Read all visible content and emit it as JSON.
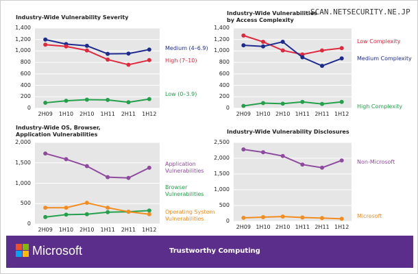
{
  "watermark": "SCAN.NETSECURITY.NE.JP",
  "footer": {
    "brand": "Microsoft",
    "caption": "Trustworthy Computing"
  },
  "chart_data": [
    {
      "type": "line",
      "title": [
        "Industry-Wide Vulnerability Severity"
      ],
      "categories": [
        "2H09",
        "1H10",
        "2H10",
        "1H11",
        "2H11",
        "1H12"
      ],
      "ylim": [
        0,
        1400
      ],
      "yticks": [
        0,
        200,
        400,
        600,
        800,
        {
          "value": 1000,
          "label": "1,000"
        },
        {
          "value": 1200,
          "label": "1,200"
        },
        {
          "value": 1400,
          "label": "1,400"
        }
      ],
      "grid": true,
      "series": [
        {
          "name": "Medium (4–6.9)",
          "color": "#1d2b8f",
          "values": [
            1200,
            1120,
            1090,
            950,
            955,
            1025
          ]
        },
        {
          "name": "High (7–10)",
          "color": "#e0283c",
          "values": [
            1110,
            1080,
            1010,
            850,
            760,
            840
          ]
        },
        {
          "name": "Low (0–3.9)",
          "color": "#22a04a",
          "values": [
            95,
            130,
            150,
            145,
            105,
            160
          ]
        }
      ]
    },
    {
      "type": "line",
      "title": [
        "Industry-Wide Vulnerabilities",
        "by Access Complexity"
      ],
      "categories": [
        "2H09",
        "1H10",
        "2H10",
        "1H11",
        "2H11",
        "1H12"
      ],
      "ylim": [
        0,
        1400
      ],
      "yticks": [
        0,
        200,
        400,
        600,
        800,
        {
          "value": 1000,
          "label": "1,000"
        },
        {
          "value": 1200,
          "label": "1,200"
        },
        {
          "value": 1400,
          "label": "1,400"
        }
      ],
      "grid": true,
      "series": [
        {
          "name": "Low Complexity",
          "color": "#e0283c",
          "values": [
            1270,
            1160,
            1010,
            940,
            1010,
            1050
          ]
        },
        {
          "name": "Medium Complexity",
          "color": "#1d2b8f",
          "values": [
            1100,
            1080,
            1160,
            890,
            740,
            870
          ]
        },
        {
          "name": "High Complexity",
          "color": "#22a04a",
          "values": [
            40,
            90,
            80,
            110,
            75,
            110
          ]
        }
      ]
    },
    {
      "type": "line",
      "title": [
        "Industry-Wide OS, Browser,",
        "Application Vulnerabilities"
      ],
      "categories": [
        "2H09",
        "1H10",
        "2H10",
        "1H11",
        "2H11",
        "1H12"
      ],
      "ylim": [
        0,
        2000
      ],
      "yticks": [
        0,
        500,
        {
          "value": 1000,
          "label": "1,000"
        },
        {
          "value": 1500,
          "label": "1,500"
        },
        {
          "value": 2000,
          "label": "2,000"
        }
      ],
      "grid": true,
      "series": [
        {
          "name": "Application Vulnerabilities",
          "color": "#8e4a9e",
          "values": [
            1730,
            1590,
            1420,
            1150,
            1130,
            1380
          ]
        },
        {
          "name": "Browser Vulnerabilities",
          "color": "#22a04a",
          "values": [
            170,
            230,
            240,
            290,
            300,
            330
          ]
        },
        {
          "name": "Operating System Vulnerabilities",
          "color": "#f28c1e",
          "values": [
            400,
            400,
            520,
            400,
            300,
            240
          ]
        }
      ]
    },
    {
      "type": "line",
      "title": [
        "Industry-Wide Vulnerability Disclosures"
      ],
      "categories": [
        "2H09",
        "1H10",
        "2H10",
        "1H11",
        "2H11",
        "1H12"
      ],
      "ylim": [
        0,
        2500
      ],
      "yticks": [
        0,
        500,
        {
          "value": 1000,
          "label": "1,000"
        },
        {
          "value": 1500,
          "label": "1,500"
        },
        {
          "value": 2000,
          "label": "2,000"
        },
        {
          "value": 2500,
          "label": "2,500"
        }
      ],
      "grid": true,
      "series": [
        {
          "name": "Non-Microsoft",
          "color": "#8e4a9e",
          "values": [
            2280,
            2190,
            2070,
            1800,
            1700,
            1930
          ]
        },
        {
          "name": "Microsoft",
          "color": "#f28c1e",
          "values": [
            110,
            130,
            150,
            120,
            100,
            80
          ]
        }
      ]
    }
  ]
}
